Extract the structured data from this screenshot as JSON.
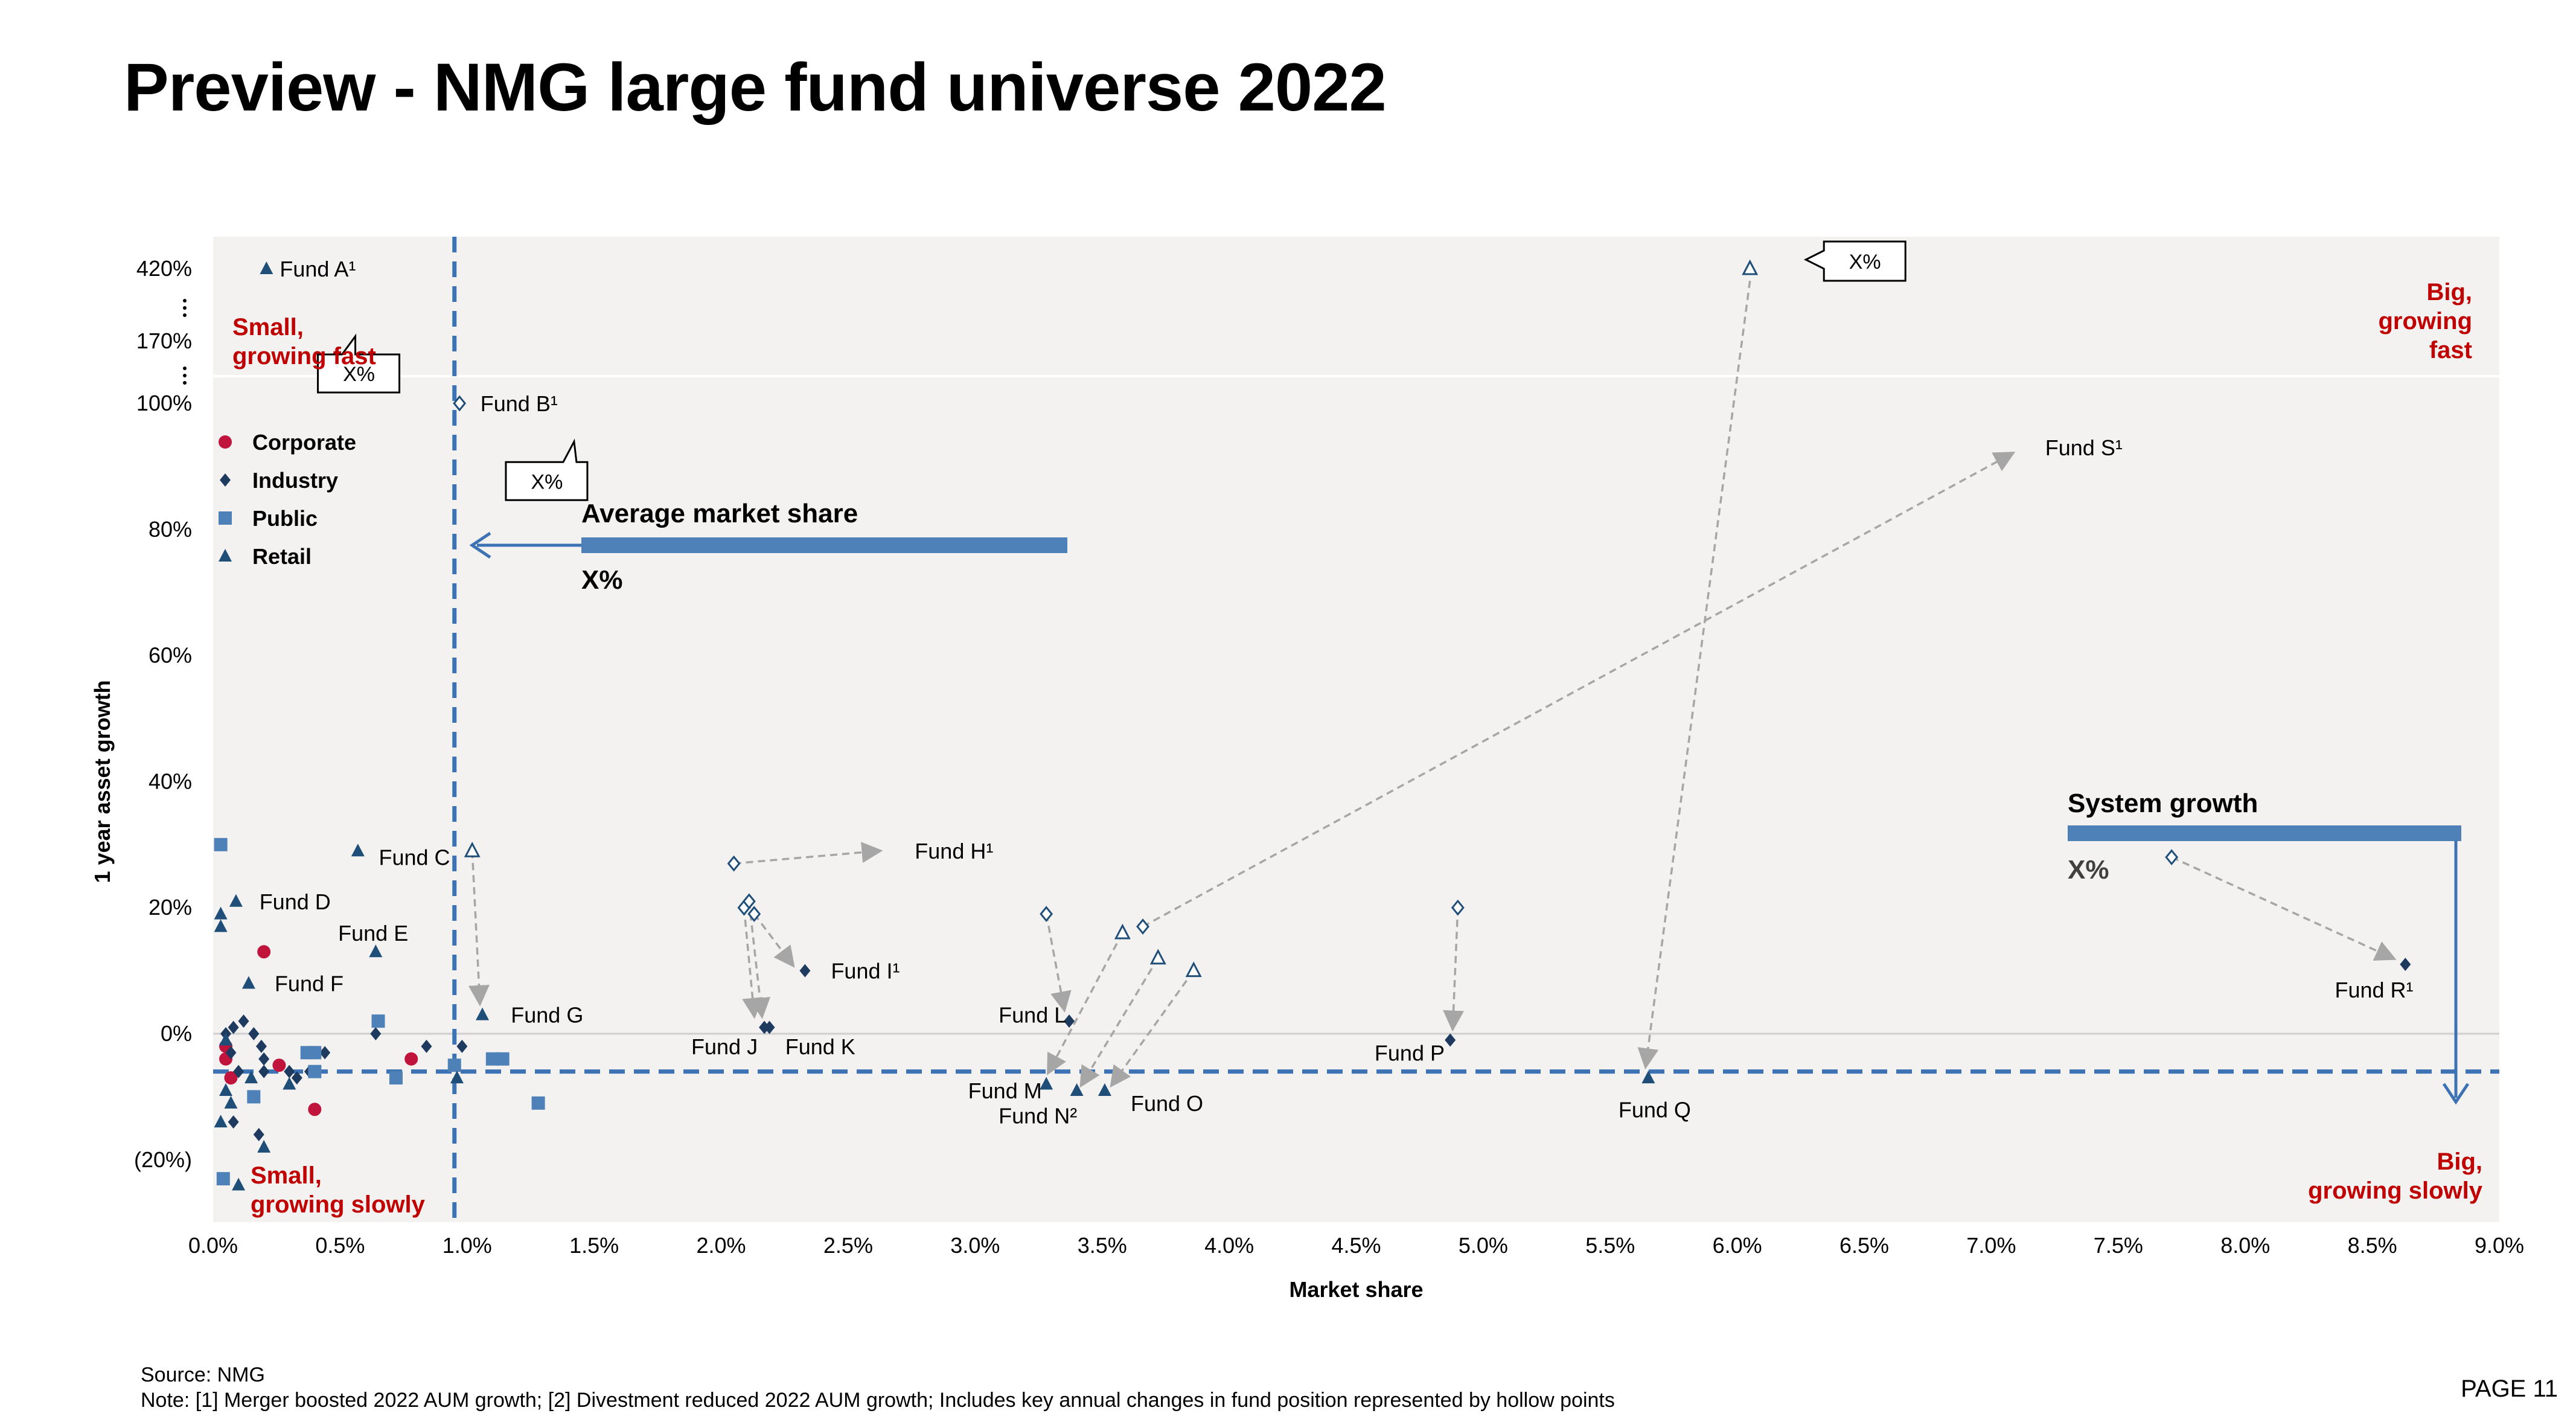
{
  "page": {
    "title": "Preview - NMG large fund universe 2022",
    "source": "Source: NMG",
    "note": "Note: [1] Merger boosted 2022 AUM growth; [2] Divestment reduced 2022 AUM growth; Includes key annual changes in fund position represented by hollow points",
    "page_number": "PAGE 11"
  },
  "chart_data": {
    "type": "scatter",
    "xlabel": "Market share",
    "ylabel": "1 year asset growth",
    "xlim": [
      0,
      9
    ],
    "xticks": [
      0,
      0.5,
      1,
      1.5,
      2,
      2.5,
      3,
      3.5,
      4,
      4.5,
      5,
      5.5,
      6,
      6.5,
      7,
      7.5,
      8,
      8.5,
      9
    ],
    "xtick_labels": [
      "0.0%",
      "0.5%",
      "1.0%",
      "1.5%",
      "2.0%",
      "2.5%",
      "3.0%",
      "3.5%",
      "4.0%",
      "4.5%",
      "5.0%",
      "5.5%",
      "6.0%",
      "6.5%",
      "7.0%",
      "7.5%",
      "8.0%",
      "8.5%",
      "9.0%"
    ],
    "ylim": [
      -30,
      100
    ],
    "yticks": [
      -20,
      0,
      20,
      40,
      60,
      80,
      100
    ],
    "ytick_labels": [
      "(20%)",
      "0%",
      "20%",
      "40%",
      "60%",
      "80%",
      "100%"
    ],
    "upper_ticks": [
      {
        "value": 420,
        "label": "420%"
      },
      {
        "value": 170,
        "label": "170%"
      }
    ],
    "colors": {
      "Corporate": "#c0143c",
      "Industry": "#1f3a5f",
      "Public": "#4f81b9",
      "Retail": "#1f4e79",
      "arrow": "#a6a6a6",
      "accent_red": "#c00000",
      "ref_line": "#3d72b4",
      "bar": "#4f81b9"
    },
    "series": [
      {
        "name": "Corporate",
        "marker": "circle",
        "points": [
          [
            0.05,
            -2
          ],
          [
            0.05,
            -4
          ],
          [
            0.07,
            -7
          ],
          [
            0.2,
            13
          ],
          [
            0.26,
            -5
          ],
          [
            0.4,
            -12
          ],
          [
            0.78,
            -4
          ]
        ]
      },
      {
        "name": "Industry",
        "marker": "diamond",
        "points": [
          [
            0.05,
            0
          ],
          [
            0.07,
            -3
          ],
          [
            0.08,
            1
          ],
          [
            0.08,
            -14
          ],
          [
            0.1,
            -6
          ],
          [
            0.12,
            2
          ],
          [
            0.16,
            0
          ],
          [
            0.19,
            -2
          ],
          [
            0.2,
            -4
          ],
          [
            0.2,
            -6
          ],
          [
            0.18,
            -16
          ],
          [
            0.3,
            -6
          ],
          [
            0.33,
            -7
          ],
          [
            0.38,
            -6
          ],
          [
            0.44,
            -3
          ],
          [
            0.64,
            0
          ],
          [
            0.84,
            -2
          ],
          [
            0.98,
            -2
          ],
          [
            2.17,
            1
          ],
          [
            2.19,
            1
          ],
          [
            2.33,
            10
          ],
          [
            3.37,
            2
          ],
          [
            4.87,
            -1
          ],
          [
            8.63,
            11
          ]
        ]
      },
      {
        "name": "Public",
        "marker": "square",
        "points": [
          [
            0.03,
            30
          ],
          [
            0.04,
            -23
          ],
          [
            0.16,
            -10
          ],
          [
            0.37,
            -3
          ],
          [
            0.4,
            -3
          ],
          [
            0.4,
            -6
          ],
          [
            0.65,
            2
          ],
          [
            0.72,
            -7
          ],
          [
            0.95,
            -5
          ],
          [
            1.1,
            -4
          ],
          [
            1.14,
            -4
          ],
          [
            1.28,
            -11
          ]
        ]
      },
      {
        "name": "Retail",
        "marker": "triangle",
        "points": [
          [
            0.03,
            19
          ],
          [
            0.03,
            17
          ],
          [
            0.03,
            -14
          ],
          [
            0.05,
            -1
          ],
          [
            0.05,
            -9
          ],
          [
            0.07,
            -11
          ],
          [
            0.09,
            21
          ],
          [
            0.1,
            -24
          ],
          [
            0.14,
            8
          ],
          [
            0.15,
            -7
          ],
          [
            0.2,
            -18
          ],
          [
            0.3,
            -8
          ],
          [
            0.57,
            29
          ],
          [
            0.64,
            13
          ],
          [
            0.96,
            -7
          ],
          [
            1.06,
            3
          ],
          [
            3.28,
            -8
          ],
          [
            3.4,
            -9
          ],
          [
            3.51,
            -9
          ],
          [
            5.65,
            -7
          ]
        ]
      }
    ],
    "offscale_points": [
      {
        "series": "Retail",
        "x": 0.21,
        "y_label_value": 420
      }
    ],
    "hollow_points": [
      {
        "marker": "diamond",
        "x": 0.97,
        "y": 100
      },
      {
        "marker": "triangle",
        "x": 1.02,
        "y": 29
      },
      {
        "marker": "diamond",
        "x": 2.05,
        "y": 27
      },
      {
        "marker": "diamond",
        "x": 2.09,
        "y": 20
      },
      {
        "marker": "diamond",
        "x": 2.11,
        "y": 21
      },
      {
        "marker": "diamond",
        "x": 2.13,
        "y": 19
      },
      {
        "marker": "diamond",
        "x": 3.28,
        "y": 19
      },
      {
        "marker": "triangle",
        "x": 3.58,
        "y": 16
      },
      {
        "marker": "diamond",
        "x": 3.66,
        "y": 17
      },
      {
        "marker": "triangle",
        "x": 3.72,
        "y": 12
      },
      {
        "marker": "triangle",
        "x": 3.86,
        "y": 10
      },
      {
        "marker": "diamond",
        "x": 4.9,
        "y": 20
      },
      {
        "marker": "diamond",
        "x": 7.71,
        "y": 28
      },
      {
        "marker": "triangle",
        "x": 6.05,
        "y": 420
      }
    ],
    "movement_arrows": [
      {
        "from": [
          2.05,
          27
        ],
        "to": [
          2.62,
          29
        ]
      },
      {
        "from": [
          1.02,
          29
        ],
        "to": [
          1.05,
          5
        ]
      },
      {
        "from": [
          2.09,
          20
        ],
        "to": [
          2.13,
          3
        ]
      },
      {
        "from": [
          2.11,
          21
        ],
        "to": [
          2.16,
          3
        ]
      },
      {
        "from": [
          2.13,
          19
        ],
        "to": [
          2.28,
          11
        ]
      },
      {
        "from": [
          3.28,
          19
        ],
        "to": [
          3.35,
          4
        ]
      },
      {
        "from": [
          3.58,
          16
        ],
        "to": [
          3.29,
          -6
        ]
      },
      {
        "from": [
          3.72,
          12
        ],
        "to": [
          3.42,
          -8
        ]
      },
      {
        "from": [
          3.86,
          10
        ],
        "to": [
          3.54,
          -8
        ]
      },
      {
        "from": [
          4.9,
          20
        ],
        "to": [
          4.88,
          1
        ]
      },
      {
        "from": [
          3.66,
          17
        ],
        "to": [
          7.08,
          92
        ]
      },
      {
        "from": [
          7.71,
          28
        ],
        "to": [
          8.58,
          12
        ]
      }
    ],
    "offscale_arrows": [
      {
        "from_x": 6.05,
        "from_value": 420,
        "to": [
          5.64,
          -5
        ]
      }
    ],
    "fund_labels": [
      {
        "text": "Fund A¹",
        "x": 0.21,
        "y_label_value": 420,
        "anchor": "start"
      },
      {
        "text": "Fund B¹",
        "x": 1.0,
        "y": 100,
        "anchor": "start"
      },
      {
        "text": "Fund C",
        "x": 0.6,
        "y": 28,
        "anchor": "start"
      },
      {
        "text": "Fund D",
        "x": 0.13,
        "y": 21,
        "anchor": "start"
      },
      {
        "text": "Fund E",
        "x": 0.44,
        "y": 16,
        "anchor": "start"
      },
      {
        "text": "Fund F",
        "x": 0.19,
        "y": 8,
        "anchor": "start"
      },
      {
        "text": "Fund G",
        "x": 1.12,
        "y": 3,
        "anchor": "start"
      },
      {
        "text": "Fund H¹",
        "x": 2.71,
        "y": 29,
        "anchor": "start"
      },
      {
        "text": "Fund I¹",
        "x": 2.38,
        "y": 10,
        "anchor": "start"
      },
      {
        "text": "Fund J",
        "x": 1.83,
        "y": -2,
        "anchor": "start"
      },
      {
        "text": "Fund K",
        "x": 2.2,
        "y": -2,
        "anchor": "start"
      },
      {
        "text": "Fund L",
        "x": 3.04,
        "y": 3,
        "anchor": "start"
      },
      {
        "text": "Fund M",
        "x": 2.92,
        "y": -9,
        "anchor": "start"
      },
      {
        "text": "Fund N²",
        "x": 3.04,
        "y": -13,
        "anchor": "start"
      },
      {
        "text": "Fund O",
        "x": 3.56,
        "y": -11,
        "anchor": "start"
      },
      {
        "text": "Fund P",
        "x": 4.52,
        "y": -3,
        "anchor": "start"
      },
      {
        "text": "Fund Q",
        "x": 5.48,
        "y": -12,
        "anchor": "start"
      },
      {
        "text": "Fund R¹",
        "x": 8.3,
        "y": 7,
        "anchor": "start"
      },
      {
        "text": "Fund S¹",
        "x": 7.16,
        "y": 93,
        "anchor": "start"
      }
    ],
    "callouts": [
      {
        "text": "X%",
        "x": 0.46,
        "y_label_value": 170
      },
      {
        "text": "X%",
        "x": 1.2,
        "y": 88
      },
      {
        "text": "X%",
        "x": 6.46,
        "y_label_value": 420
      }
    ],
    "quadrant_labels": [
      {
        "lines": [
          "Small,",
          "growing fast"
        ],
        "position": "top-left"
      },
      {
        "lines": [
          "Big,",
          "growing",
          "fast"
        ],
        "position": "top-right"
      },
      {
        "lines": [
          "Small,",
          "growing slowly"
        ],
        "position": "bottom-left"
      },
      {
        "lines": [
          "Big,",
          "growing slowly"
        ],
        "position": "bottom-right"
      }
    ],
    "reference_lines": {
      "average_market_share": {
        "label": "Average market share",
        "value_label": "X%",
        "x": 0.95
      },
      "system_growth": {
        "label": "System growth",
        "value_label": "X%",
        "y": -6
      }
    },
    "legend": {
      "position": "top-left",
      "entries": [
        "Corporate",
        "Industry",
        "Public",
        "Retail"
      ]
    },
    "grid": false
  }
}
